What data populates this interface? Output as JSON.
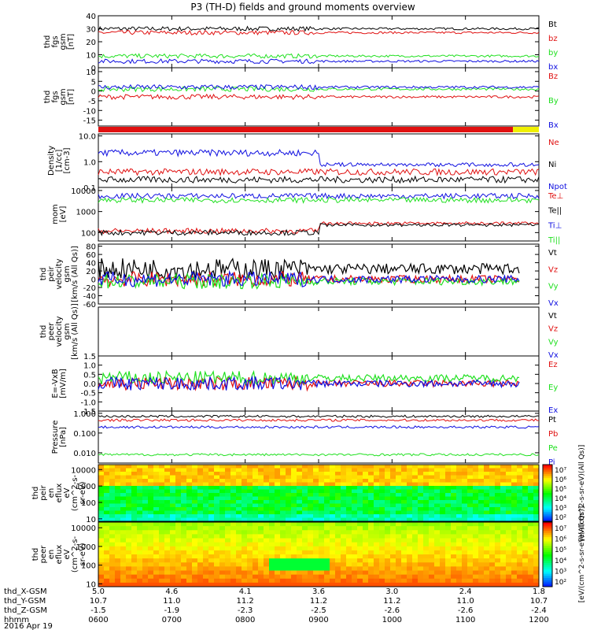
{
  "title": "P3 (TH-D) fields and ground moments overview",
  "colors": {
    "black": "#000000",
    "red": "#e01010",
    "green": "#20e020",
    "blue": "#1010e0",
    "yellow": "#f0f000"
  },
  "chart_data": {
    "type": "line",
    "time_ticks": [
      "0600",
      "0700",
      "0800",
      "0900",
      "1000",
      "1100",
      "1200"
    ],
    "xlim": [
      "0600",
      "1200"
    ],
    "date": "2016 Apr 19",
    "orbit": {
      "labels": [
        "thd_X-GSM",
        "thd_Y-GSM",
        "thd_Z-GSM",
        "hhmm"
      ],
      "rows": [
        [
          "5.0",
          "4.6",
          "4.1",
          "3.6",
          "3.0",
          "2.4",
          "1.8"
        ],
        [
          "10.7",
          "11.0",
          "11.2",
          "11.2",
          "11.2",
          "11.0",
          "10.7"
        ],
        [
          "-1.5",
          "-1.9",
          "-2.3",
          "-2.5",
          "-2.6",
          "-2.6",
          "-2.4"
        ]
      ]
    },
    "panels": [
      {
        "ylabel": [
          "thd",
          "fgs",
          "gsm",
          "[nT]"
        ],
        "ticks": [
          "0",
          "10",
          "20",
          "30",
          "40"
        ],
        "ylim": [
          0,
          40
        ],
        "series": [
          {
            "name": "Bt",
            "color": "black",
            "base": 30
          },
          {
            "name": "bz",
            "color": "red",
            "base": 27
          },
          {
            "name": "by",
            "color": "green",
            "base": 9
          },
          {
            "name": "bx",
            "color": "blue",
            "base": 5
          }
        ]
      },
      {
        "ylabel": [
          "thd",
          "fgs",
          "gsm",
          "[nT]"
        ],
        "ticks": [
          "-15",
          "-10",
          "-5",
          "0",
          "5",
          "10"
        ],
        "ylim": [
          -18,
          12
        ],
        "series": [
          {
            "name": "Bz",
            "color": "red",
            "base": -3
          },
          {
            "name": "By",
            "color": "green",
            "base": 1
          },
          {
            "name": "Bx",
            "color": "blue",
            "base": 2
          }
        ]
      },
      {
        "ylabel": [
          "Density",
          "[1/cc]",
          "[cm-3]"
        ],
        "ticks": [
          "0.1",
          "1.0",
          "10.0"
        ],
        "ylim": [
          0.1,
          12
        ],
        "scale": "log",
        "series": [
          {
            "name": "Ne",
            "color": "red",
            "base": 0.4
          },
          {
            "name": "Ni",
            "color": "black",
            "base": 0.2
          },
          {
            "name": "Npot",
            "color": "blue",
            "base": 2.2
          }
        ]
      },
      {
        "ylabel": [
          "mom",
          "[eV]"
        ],
        "ticks": [
          "100",
          "1000",
          "10000"
        ],
        "ylim": [
          40,
          14000
        ],
        "scale": "log",
        "series": [
          {
            "name": "Te⊥",
            "color": "red",
            "base": 120
          },
          {
            "name": "Te||",
            "color": "black",
            "base": 100
          },
          {
            "name": "Ti⊥",
            "color": "blue",
            "base": 5500
          },
          {
            "name": "Ti||",
            "color": "green",
            "base": 3500
          }
        ]
      },
      {
        "ylabel": [
          "thd",
          "peir",
          "velocity",
          "gsm",
          "[km/s (All Qs)]"
        ],
        "ticks": [
          "-60",
          "-40",
          "-20",
          "0",
          "20",
          "40",
          "60",
          "80"
        ],
        "ylim": [
          -60,
          85
        ],
        "series": [
          {
            "name": "Vt",
            "color": "black",
            "base": 25
          },
          {
            "name": "Vz",
            "color": "red",
            "base": 0
          },
          {
            "name": "Vy",
            "color": "green",
            "base": -5
          },
          {
            "name": "Vx",
            "color": "blue",
            "base": 0
          }
        ]
      },
      {
        "ylabel": [
          "thd",
          "peer",
          "velocity",
          "gsm",
          "[km/s (All Qs)]"
        ],
        "ticks": [],
        "ylim": [
          0,
          1
        ],
        "series": [
          {
            "name": "Vt",
            "color": "black"
          },
          {
            "name": "Vz",
            "color": "red"
          },
          {
            "name": "Vy",
            "color": "green"
          },
          {
            "name": "Vx",
            "color": "blue"
          }
        ]
      },
      {
        "ylabel": [
          "E=-VxB",
          "[mV/m]"
        ],
        "ticks": [
          "-1.5",
          "-1.0",
          "-0.5",
          "0.0",
          "0.5",
          "1.0",
          "1.5"
        ],
        "ylim": [
          -1.5,
          1.5
        ],
        "series": [
          {
            "name": "Ez",
            "color": "red",
            "base": 0
          },
          {
            "name": "Ey",
            "color": "green",
            "base": 0.3
          },
          {
            "name": "Ex",
            "color": "blue",
            "base": 0
          }
        ]
      },
      {
        "ylabel": [
          "Pressure",
          "[nPa]"
        ],
        "ticks": [
          "0.010",
          "0.100",
          "1.000"
        ],
        "ylim": [
          0.003,
          1.3
        ],
        "scale": "log",
        "series": [
          {
            "name": "Pt",
            "color": "black",
            "base": 0.7
          },
          {
            "name": "Pb",
            "color": "red",
            "base": 0.45
          },
          {
            "name": "Pe",
            "color": "green",
            "base": 0.008
          },
          {
            "name": "Pi",
            "color": "blue",
            "base": 0.2
          }
        ]
      }
    ],
    "spectrograms": [
      {
        "ylabel": [
          "thd",
          "peir",
          "en",
          "eflux",
          "eV",
          "(cm^2-s-",
          "sr-eV)"
        ],
        "ticks": [
          "10",
          "100",
          "1000",
          "10000"
        ]
      },
      {
        "ylabel": [
          "thd",
          "peer",
          "en",
          "eflux",
          "eV",
          "(cm^2-s-",
          "sr-eV)"
        ],
        "ticks": [
          "10",
          "100",
          "1000",
          "10000"
        ]
      }
    ],
    "colorbar": {
      "label": "[eV/(cm^2-s-sr-eV)(All Qs)]",
      "ticks": [
        "10²",
        "10³",
        "10⁴",
        "10⁵",
        "10⁶",
        "10⁷"
      ]
    }
  }
}
